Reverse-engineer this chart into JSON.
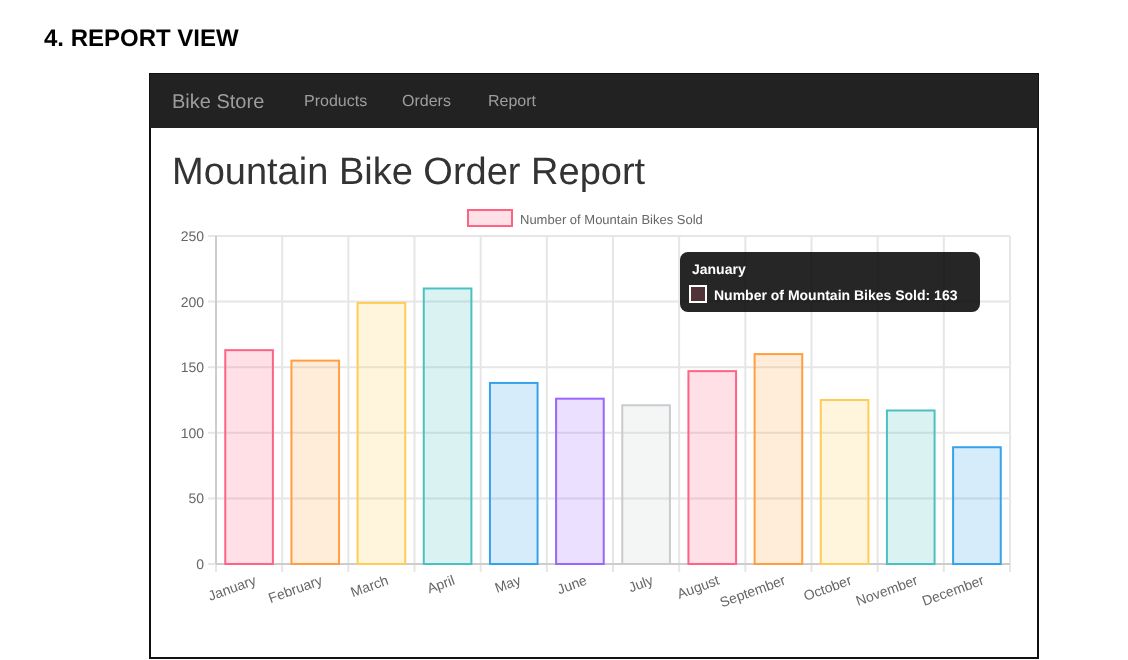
{
  "chart_data": {
    "type": "bar",
    "title": "Mountain Bike Order Report",
    "categories": [
      "January",
      "February",
      "March",
      "April",
      "May",
      "June",
      "July",
      "August",
      "September",
      "October",
      "November",
      "December"
    ],
    "series": [
      {
        "name": "Number of Mountain Bikes Sold",
        "color": "#ff6384",
        "colors": [
          "#ff6384",
          "#ff9f40",
          "#ffcd56",
          "#4bc0c0",
          "#36a2eb",
          "#9966ff",
          "#c9cbcf",
          "#ff6384",
          "#ff9f40",
          "#ffcd56",
          "#4bc0c0",
          "#36a2eb"
        ],
        "values": [
          163,
          155,
          199,
          210,
          138,
          126,
          121,
          147,
          160,
          125,
          117,
          89
        ]
      }
    ],
    "ylim": [
      0,
      250
    ],
    "yticks": [
      0,
      50,
      100,
      150,
      200,
      250
    ],
    "grid": true,
    "legend": "top",
    "annotations": [
      "4.  REPORT VIEW",
      "Bike Store",
      "Products",
      "Orders",
      "Report",
      "January",
      "Number of Mountain Bikes Sold: 163"
    ]
  }
}
